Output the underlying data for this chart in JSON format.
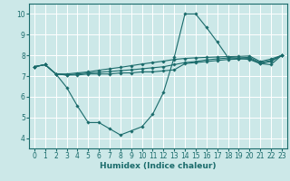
{
  "xlabel": "Humidex (Indice chaleur)",
  "xlim": [
    -0.5,
    23.5
  ],
  "ylim": [
    3.5,
    10.5
  ],
  "xticks": [
    0,
    1,
    2,
    3,
    4,
    5,
    6,
    7,
    8,
    9,
    10,
    11,
    12,
    13,
    14,
    15,
    16,
    17,
    18,
    19,
    20,
    21,
    22,
    23
  ],
  "yticks": [
    4,
    5,
    6,
    7,
    8,
    9,
    10
  ],
  "bg_color": "#cce8e8",
  "line_color": "#1a6b6b",
  "grid_color": "#ffffff",
  "lines": [
    {
      "x": [
        0,
        1,
        2,
        3,
        4,
        5,
        6,
        7,
        8,
        9,
        10,
        11,
        12,
        13,
        14,
        15,
        16,
        17,
        18,
        19,
        20,
        21,
        22,
        23
      ],
      "y": [
        7.45,
        7.55,
        7.1,
        6.45,
        5.55,
        4.75,
        4.75,
        4.45,
        4.15,
        4.35,
        4.55,
        5.15,
        6.2,
        7.9,
        10.0,
        10.0,
        9.35,
        8.65,
        7.9,
        7.85,
        7.8,
        7.6,
        7.55,
        8.0
      ]
    },
    {
      "x": [
        0,
        1,
        2,
        3,
        4,
        5,
        6,
        7,
        8,
        9,
        10,
        11,
        12,
        13,
        14,
        15,
        16,
        17,
        18,
        19,
        20,
        21,
        22,
        23
      ],
      "y": [
        7.45,
        7.55,
        7.1,
        7.05,
        7.05,
        7.1,
        7.1,
        7.1,
        7.15,
        7.15,
        7.2,
        7.2,
        7.25,
        7.3,
        7.6,
        7.65,
        7.7,
        7.75,
        7.8,
        7.82,
        7.85,
        7.6,
        7.7,
        8.0
      ]
    },
    {
      "x": [
        0,
        1,
        2,
        3,
        4,
        5,
        6,
        7,
        8,
        9,
        10,
        11,
        12,
        13,
        14,
        15,
        16,
        17,
        18,
        19,
        20,
        21,
        22,
        23
      ],
      "y": [
        7.45,
        7.55,
        7.1,
        7.05,
        7.1,
        7.15,
        7.18,
        7.22,
        7.26,
        7.3,
        7.35,
        7.4,
        7.45,
        7.55,
        7.65,
        7.7,
        7.78,
        7.83,
        7.87,
        7.88,
        7.9,
        7.65,
        7.75,
        8.0
      ]
    },
    {
      "x": [
        0,
        1,
        2,
        3,
        4,
        5,
        6,
        7,
        8,
        9,
        10,
        11,
        12,
        13,
        14,
        15,
        16,
        17,
        18,
        19,
        20,
        21,
        22,
        23
      ],
      "y": [
        7.45,
        7.55,
        7.1,
        7.1,
        7.15,
        7.2,
        7.28,
        7.35,
        7.42,
        7.5,
        7.58,
        7.65,
        7.72,
        7.8,
        7.85,
        7.88,
        7.9,
        7.92,
        7.94,
        7.95,
        7.97,
        7.7,
        7.82,
        8.0
      ]
    }
  ]
}
